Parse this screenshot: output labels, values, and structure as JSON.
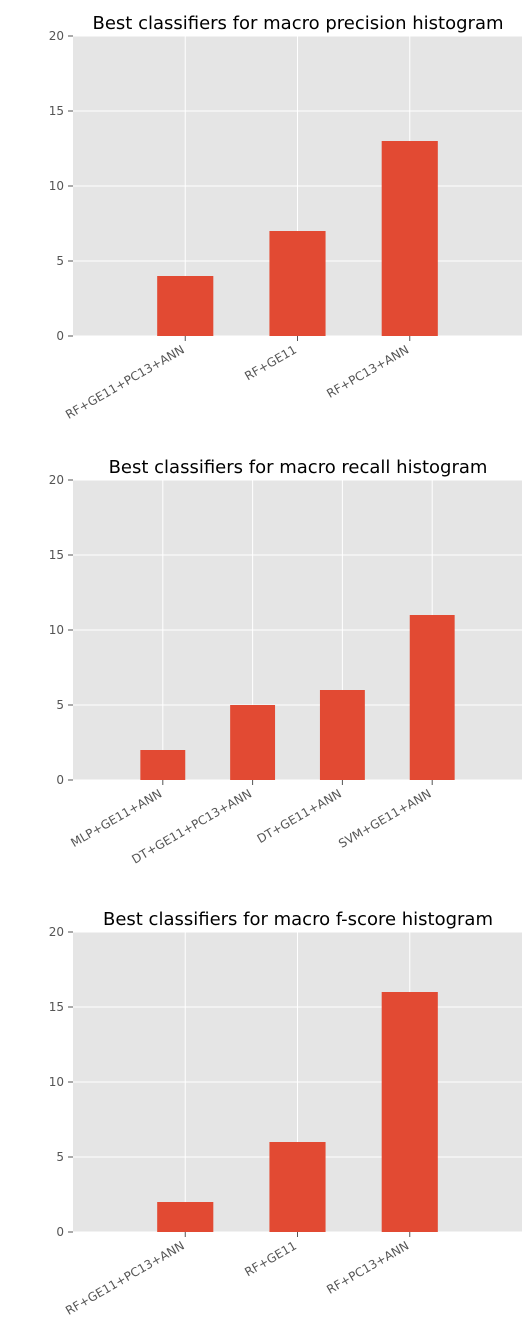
{
  "chart_data": [
    {
      "type": "bar",
      "title": "Best classifiers for macro precision histogram",
      "categories": [
        "RF+GE11+PC13+ANN",
        "RF+GE11",
        "RF+PC13+ANN"
      ],
      "values": [
        4,
        7,
        13
      ],
      "ylim": [
        0,
        20
      ],
      "yticks": [
        "0",
        "5",
        "10",
        "15",
        "20"
      ],
      "xlabel": "",
      "ylabel": "",
      "grid": true,
      "bar_color": "#E24A33",
      "background_color": "#E5E5E5"
    },
    {
      "type": "bar",
      "title": "Best classifiers for macro recall histogram",
      "categories": [
        "MLP+GE11+ANN",
        "DT+GE11+PC13+ANN",
        "DT+GE11+ANN",
        "SVM+GE11+ANN"
      ],
      "values": [
        2,
        5,
        6,
        11
      ],
      "ylim": [
        0,
        20
      ],
      "yticks": [
        "0",
        "5",
        "10",
        "15",
        "20"
      ],
      "xlabel": "",
      "ylabel": "",
      "grid": true,
      "bar_color": "#E24A33",
      "background_color": "#E5E5E5"
    },
    {
      "type": "bar",
      "title": "Best classifiers for macro f-score histogram",
      "categories": [
        "RF+GE11+PC13+ANN",
        "RF+GE11",
        "RF+PC13+ANN"
      ],
      "values": [
        2,
        6,
        16
      ],
      "ylim": [
        0,
        20
      ],
      "yticks": [
        "0",
        "5",
        "10",
        "15",
        "20"
      ],
      "xlabel": "",
      "ylabel": "",
      "grid": true,
      "bar_color": "#E24A33",
      "background_color": "#E5E5E5"
    }
  ]
}
